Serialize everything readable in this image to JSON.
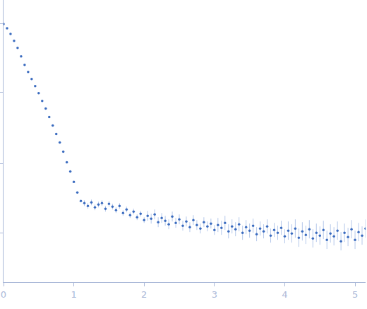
{
  "chart_data": {
    "type": "scatter",
    "marker": "circle",
    "color": "#3a6bbf",
    "tick_labels": "x",
    "xlim": [
      0,
      5.15
    ],
    "xticks": [
      0,
      1,
      2,
      3,
      4,
      5
    ],
    "ylim": [
      0,
      4
    ],
    "yticks": [
      0.7,
      1.68,
      2.69,
      3.66
    ],
    "x": [
      0,
      0.05,
      0.1,
      0.15,
      0.2,
      0.25,
      0.3,
      0.35,
      0.4,
      0.45,
      0.5,
      0.55,
      0.6,
      0.65,
      0.7,
      0.75,
      0.8,
      0.85,
      0.9,
      0.95,
      1.0,
      1.05,
      1.1,
      1.15,
      1.2,
      1.25,
      1.3,
      1.35,
      1.4,
      1.45,
      1.5,
      1.55,
      1.6,
      1.65,
      1.7,
      1.75,
      1.8,
      1.85,
      1.9,
      1.95,
      2.0,
      2.05,
      2.1,
      2.15,
      2.2,
      2.25,
      2.3,
      2.35,
      2.4,
      2.45,
      2.5,
      2.55,
      2.6,
      2.65,
      2.7,
      2.75,
      2.8,
      2.85,
      2.9,
      2.95,
      3.0,
      3.05,
      3.1,
      3.15,
      3.2,
      3.25,
      3.3,
      3.35,
      3.4,
      3.45,
      3.5,
      3.55,
      3.6,
      3.65,
      3.7,
      3.75,
      3.8,
      3.85,
      3.9,
      3.95,
      4.0,
      4.05,
      4.1,
      4.15,
      4.2,
      4.25,
      4.3,
      4.35,
      4.4,
      4.45,
      4.5,
      4.55,
      4.6,
      4.65,
      4.7,
      4.75,
      4.8,
      4.85,
      4.9,
      4.95,
      5.0,
      5.05,
      5.1,
      5.15
    ],
    "values": [
      3.66,
      3.6,
      3.52,
      3.42,
      3.32,
      3.2,
      3.08,
      2.98,
      2.88,
      2.78,
      2.68,
      2.57,
      2.46,
      2.34,
      2.22,
      2.1,
      1.98,
      1.85,
      1.7,
      1.57,
      1.42,
      1.27,
      1.15,
      1.12,
      1.08,
      1.13,
      1.06,
      1.1,
      1.12,
      1.04,
      1.11,
      1.07,
      1.02,
      1.08,
      0.98,
      1.03,
      0.95,
      1.0,
      0.92,
      0.97,
      0.88,
      0.94,
      0.9,
      0.96,
      0.85,
      0.91,
      0.87,
      0.82,
      0.93,
      0.84,
      0.89,
      0.8,
      0.86,
      0.78,
      0.88,
      0.81,
      0.76,
      0.85,
      0.79,
      0.83,
      0.74,
      0.81,
      0.77,
      0.84,
      0.72,
      0.79,
      0.75,
      0.82,
      0.7,
      0.78,
      0.73,
      0.8,
      0.68,
      0.76,
      0.72,
      0.79,
      0.66,
      0.74,
      0.7,
      0.77,
      0.65,
      0.73,
      0.69,
      0.76,
      0.63,
      0.72,
      0.67,
      0.75,
      0.62,
      0.7,
      0.66,
      0.74,
      0.6,
      0.69,
      0.65,
      0.73,
      0.58,
      0.7,
      0.64,
      0.75,
      0.6,
      0.71,
      0.66,
      0.76
    ],
    "errors": [
      0.01,
      0.01,
      0.01,
      0.01,
      0.01,
      0.01,
      0.01,
      0.01,
      0.01,
      0.01,
      0.01,
      0.01,
      0.01,
      0.01,
      0.01,
      0.01,
      0.01,
      0.01,
      0.01,
      0.01,
      0.01,
      0.01,
      0.01,
      0.04,
      0.04,
      0.04,
      0.04,
      0.04,
      0.04,
      0.04,
      0.04,
      0.04,
      0.04,
      0.04,
      0.04,
      0.04,
      0.04,
      0.04,
      0.04,
      0.04,
      0.04,
      0.07,
      0.07,
      0.07,
      0.07,
      0.07,
      0.07,
      0.07,
      0.07,
      0.07,
      0.07,
      0.07,
      0.07,
      0.07,
      0.07,
      0.07,
      0.07,
      0.07,
      0.07,
      0.07,
      0.07,
      0.1,
      0.1,
      0.1,
      0.1,
      0.1,
      0.1,
      0.1,
      0.1,
      0.1,
      0.1,
      0.1,
      0.1,
      0.1,
      0.1,
      0.1,
      0.1,
      0.1,
      0.1,
      0.1,
      0.1,
      0.13,
      0.13,
      0.13,
      0.13,
      0.13,
      0.13,
      0.13,
      0.13,
      0.13,
      0.13,
      0.13,
      0.13,
      0.13,
      0.13,
      0.13,
      0.13,
      0.13,
      0.13,
      0.13,
      0.13,
      0.13,
      0.13,
      0.13
    ]
  }
}
